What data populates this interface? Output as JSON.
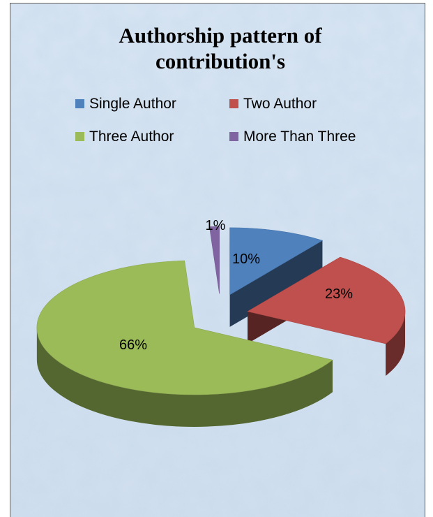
{
  "chart_data": {
    "type": "pie",
    "title_lines": [
      "Authorship pattern of",
      "contribution's"
    ],
    "categories": [
      "Single Author",
      "Two Author",
      "Three Author",
      "More Than Three"
    ],
    "values": [
      10,
      23,
      66,
      1
    ],
    "labels": [
      "10%",
      "23%",
      "66%",
      "1%"
    ],
    "colors": [
      "#4f81bd",
      "#c0504d",
      "#9bbb59",
      "#8064a2"
    ],
    "style": "3d-exploded",
    "legend_position": "top"
  }
}
